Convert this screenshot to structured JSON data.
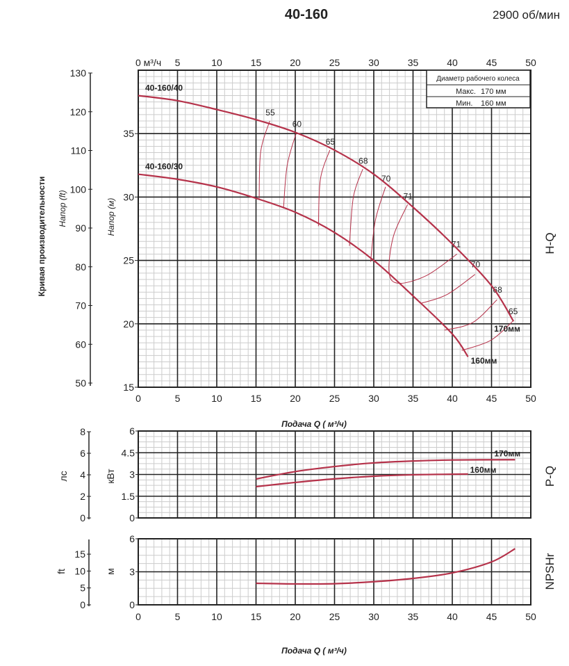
{
  "header": {
    "title": "40-160",
    "speed": "2900 об/мин"
  },
  "legend_box": {
    "title": "Диаметр рабочего колеса",
    "max_label": "Макс.",
    "max_value": "170 мм",
    "min_label": "Мин.",
    "min_value": "160 мм"
  },
  "colors": {
    "curve": "#b5324a",
    "grid_major": "#222222",
    "grid_minor": "#cccccc"
  },
  "chart_data": [
    {
      "type": "line",
      "id": "hq",
      "side_label": "H-Q",
      "title": "Кривая производительности",
      "ylabel": "Напор (м)",
      "ylabel_ft": "Напор (ft)",
      "xlabel_top_unit": "0 м³/ч",
      "xlim": [
        0,
        50
      ],
      "ylim": [
        15,
        40
      ],
      "xticks": [
        0,
        5,
        10,
        15,
        20,
        25,
        30,
        35,
        40,
        45,
        50
      ],
      "yticks": [
        15,
        20,
        25,
        30,
        35
      ],
      "yticks_ft": [
        50,
        60,
        70,
        80,
        90,
        100,
        110,
        120,
        130
      ],
      "series": [
        {
          "name": "170мм",
          "start_label": "40-160/40",
          "points": [
            [
              0,
              38.0
            ],
            [
              5,
              37.6
            ],
            [
              10,
              36.9
            ],
            [
              15,
              36.1
            ],
            [
              20,
              35.1
            ],
            [
              25,
              33.7
            ],
            [
              30,
              31.8
            ],
            [
              35,
              29.2
            ],
            [
              40,
              26.3
            ],
            [
              45,
              23.0
            ],
            [
              47.8,
              20.2
            ]
          ]
        },
        {
          "name": "160мм",
          "start_label": "40-160/30",
          "points": [
            [
              0,
              31.8
            ],
            [
              5,
              31.4
            ],
            [
              10,
              30.8
            ],
            [
              15,
              29.9
            ],
            [
              20,
              28.8
            ],
            [
              25,
              27.2
            ],
            [
              30,
              25.0
            ],
            [
              35,
              22.2
            ],
            [
              40,
              19.2
            ],
            [
              42,
              17.4
            ]
          ]
        }
      ],
      "efficiency_contours": [
        {
          "label": "55",
          "points": [
            [
              16.75,
              36.0
            ],
            [
              15.6,
              33.6
            ],
            [
              15.4,
              29.9
            ]
          ]
        },
        {
          "label": "60",
          "points": [
            [
              20.15,
              35.1
            ],
            [
              18.97,
              32.5
            ],
            [
              18.5,
              29.1
            ]
          ]
        },
        {
          "label": "65",
          "points": [
            [
              24.4,
              33.7
            ],
            [
              23.2,
              31.4
            ],
            [
              22.95,
              27.7
            ]
          ]
        },
        {
          "label": "68",
          "points": [
            [
              28.6,
              32.2
            ],
            [
              27.4,
              30.0
            ],
            [
              26.9,
              26.15
            ]
          ]
        },
        {
          "label": "70",
          "points": [
            [
              31.5,
              30.8
            ],
            [
              30.2,
              28.15
            ],
            [
              29.6,
              24.9
            ]
          ]
        },
        {
          "label": "71",
          "points": [
            [
              34.3,
              29.4
            ],
            [
              32.5,
              26.9
            ],
            [
              31.95,
              24.1
            ],
            [
              33.1,
              23.2
            ],
            [
              36.7,
              23.8
            ],
            [
              40.6,
              25.5
            ]
          ],
          "end_label": "71"
        },
        {
          "label": "70",
          "points": [
            [
              35.9,
              21.6
            ],
            [
              39.3,
              22.3
            ],
            [
              42.9,
              23.9
            ]
          ],
          "right": true
        },
        {
          "label": "68",
          "points": [
            [
              39.0,
              19.5
            ],
            [
              42.6,
              20.1
            ],
            [
              45.7,
              21.9
            ]
          ],
          "right": true
        },
        {
          "label": "65",
          "points": [
            [
              41.2,
              17.9
            ],
            [
              44.9,
              18.7
            ],
            [
              47.7,
              20.2
            ]
          ],
          "right": true
        }
      ]
    },
    {
      "type": "line",
      "id": "pq",
      "side_label": "P-Q",
      "ylabel": "кВт",
      "ylabel_hp": "лс",
      "xlabel": "Подача Q ( м³/ч)",
      "xlim": [
        0,
        50
      ],
      "ylim": [
        0,
        6
      ],
      "yticks": [
        0,
        1.5,
        3,
        4.5,
        6
      ],
      "yticks_hp": [
        0,
        2,
        4,
        6,
        8
      ],
      "series": [
        {
          "name": "170мм",
          "points": [
            [
              15,
              2.69
            ],
            [
              20,
              3.2
            ],
            [
              25,
              3.55
            ],
            [
              30,
              3.8
            ],
            [
              35,
              3.93
            ],
            [
              40,
              4.0
            ],
            [
              48,
              4.02
            ]
          ]
        },
        {
          "name": "160мм",
          "points": [
            [
              15,
              2.16
            ],
            [
              20,
              2.45
            ],
            [
              25,
              2.7
            ],
            [
              30,
              2.88
            ],
            [
              35,
              2.98
            ],
            [
              42,
              3.03
            ]
          ]
        }
      ]
    },
    {
      "type": "line",
      "id": "npsh",
      "side_label": "NPSHr",
      "ylabel": "м",
      "ylabel_ft": "ft",
      "xlabel": "Подача Q ( м³/ч)",
      "xlim": [
        0,
        50
      ],
      "ylim": [
        0,
        6
      ],
      "xticks": [
        0,
        5,
        10,
        15,
        20,
        25,
        30,
        35,
        40,
        45,
        50
      ],
      "yticks": [
        0,
        3,
        6
      ],
      "yticks_ft": [
        0,
        5,
        10,
        15
      ],
      "series": [
        {
          "name": "NPSHr",
          "points": [
            [
              15,
              1.96
            ],
            [
              20,
              1.9
            ],
            [
              25,
              1.92
            ],
            [
              30,
              2.1
            ],
            [
              35,
              2.4
            ],
            [
              40,
              2.9
            ],
            [
              45,
              3.9
            ],
            [
              48,
              5.1
            ]
          ]
        }
      ]
    }
  ]
}
